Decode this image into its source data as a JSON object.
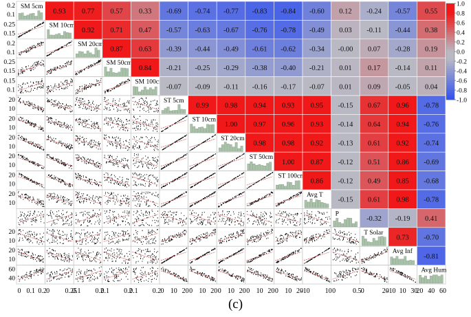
{
  "caption": "(c)",
  "chart_data": {
    "type": "heatmap",
    "title": "",
    "variables": [
      "SM 5cm",
      "SM 10cm",
      "SM  20cm",
      "SM 50cm",
      "SM 100cm",
      "ST 5cm",
      "ST 10cm",
      "ST 20cm",
      "ST 50cm",
      "ST 100cm",
      "Avg T",
      "P",
      "T Solar",
      "Avg Inf",
      "Avg Hum"
    ],
    "upper_triangle_correlations": [
      [
        "0.93",
        "0.77",
        "0.57",
        "0.33",
        "-0.69",
        "-0.74",
        "-0.77",
        "-0.83",
        "-0.84",
        "-0.60",
        "0.12",
        "-0.24",
        "-0.57",
        "0.55"
      ],
      [
        "0.92",
        "0.71",
        "0.47",
        "-0.57",
        "-0.63",
        "-0.67",
        "-0.76",
        "-0.78",
        "-0.49",
        "0.03",
        "-0.11",
        "-0.44",
        "0.38"
      ],
      [
        "0.87",
        "0.63",
        "-0.39",
        "-0.44",
        "-0.49",
        "-0.61",
        "-0.62",
        "-0.34",
        "-0.00",
        "0.07",
        "-0.28",
        "0.19"
      ],
      [
        "0.84",
        "-0.21",
        "-0.25",
        "-0.29",
        "-0.38",
        "-0.40",
        "-0.21",
        "0.01",
        "0.17",
        "-0.14",
        "0.11"
      ],
      [
        "-0.07",
        "-0.09",
        "-0.11",
        "-0.16",
        "-0.17",
        "-0.07",
        "0.01",
        "0.09",
        "-0.05",
        "0.04"
      ],
      [
        "0.99",
        "0.98",
        "0.94",
        "0.93",
        "0.95",
        "-0.15",
        "0.67",
        "0.96",
        "-0.78"
      ],
      [
        "1.00",
        "0.97",
        "0.96",
        "0.93",
        "-0.14",
        "0.64",
        "0.94",
        "-0.76"
      ],
      [
        "0.98",
        "0.98",
        "0.92",
        "-0.13",
        "0.61",
        "0.92",
        "-0.74"
      ],
      [
        "1.00",
        "0.87",
        "-0.12",
        "0.51",
        "0.86",
        "-0.69"
      ],
      [
        "0.86",
        "-0.12",
        "0.49",
        "0.85",
        "-0.68"
      ],
      [
        "-0.15",
        "0.61",
        "0.98",
        "-0.78"
      ],
      [
        "-0.32",
        "-0.19",
        "0.41"
      ],
      [
        "0.73",
        "-0.70"
      ],
      [
        "-0.81"
      ]
    ],
    "colorbar": {
      "ticks": [
        "1.0",
        "0.8",
        "0.6",
        "0.4",
        "0.2",
        "0.0",
        "-0.2",
        "-0.4",
        "-0.6",
        "-0.8",
        "-1.0"
      ],
      "low_color": "#3050f0",
      "mid_color": "#b9b9c4",
      "high_color": "#f01818"
    },
    "y_tick_labels": [
      [
        "0.2",
        "0.1"
      ],
      [
        "0.25",
        "0.15"
      ],
      [
        "0.2",
        "0.1"
      ],
      [
        "0.25",
        "0.15"
      ],
      [
        "0.15",
        "0.1"
      ],
      [
        "20",
        "10"
      ],
      [
        "20",
        "10"
      ],
      [
        "20",
        "10"
      ],
      [
        "20",
        "10"
      ],
      [
        "20",
        "10"
      ],
      [
        "20",
        "10"
      ],
      [],
      [
        "20",
        "10"
      ],
      [
        "20",
        "10"
      ],
      [
        "60",
        "40"
      ]
    ],
    "x_tick_labels": [
      [
        "0",
        "0.1",
        "0.2"
      ],
      [
        "0",
        "0.25"
      ],
      [
        "0.1",
        "0.2"
      ],
      [
        "0.1",
        "0.2"
      ],
      [
        "0.1",
        "0.2"
      ],
      [
        "0",
        "10",
        "20"
      ],
      [
        "0",
        "10",
        "20"
      ],
      [
        "0",
        "10",
        "20"
      ],
      [
        "0",
        "10",
        "20"
      ],
      [
        "0",
        "10",
        "20"
      ],
      [
        "-10",
        "10"
      ],
      [
        "0",
        "0.5"
      ],
      [
        "0",
        "20"
      ],
      [
        "-10",
        "10",
        "30"
      ],
      [
        "20",
        "40",
        "60"
      ]
    ]
  }
}
